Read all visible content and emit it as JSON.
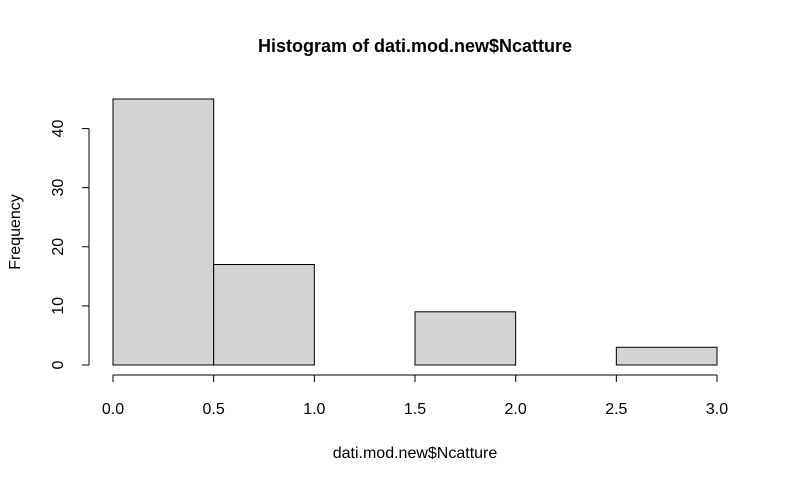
{
  "chart_data": {
    "type": "bar",
    "subtype": "histogram",
    "title": "Histogram of dati.mod.new$Ncatture",
    "xlabel": "dati.mod.new$Ncatture",
    "ylabel": "Frequency",
    "bins": [
      {
        "from": 0.0,
        "to": 0.5,
        "value": 45
      },
      {
        "from": 0.5,
        "to": 1.0,
        "value": 17
      },
      {
        "from": 1.0,
        "to": 1.5,
        "value": 0
      },
      {
        "from": 1.5,
        "to": 2.0,
        "value": 9
      },
      {
        "from": 2.0,
        "to": 2.5,
        "value": 0
      },
      {
        "from": 2.5,
        "to": 3.0,
        "value": 3
      }
    ],
    "xlim": [
      0,
      3
    ],
    "ylim": [
      0,
      45
    ],
    "x_ticks": [
      {
        "value": 0.0,
        "label": "0.0"
      },
      {
        "value": 0.5,
        "label": "0.5"
      },
      {
        "value": 1.0,
        "label": "1.0"
      },
      {
        "value": 1.5,
        "label": "1.5"
      },
      {
        "value": 2.0,
        "label": "2.0"
      },
      {
        "value": 2.5,
        "label": "2.5"
      },
      {
        "value": 3.0,
        "label": "3.0"
      }
    ],
    "y_ticks": [
      {
        "value": 0,
        "label": "0"
      },
      {
        "value": 10,
        "label": "10"
      },
      {
        "value": 20,
        "label": "20"
      },
      {
        "value": 30,
        "label": "30"
      },
      {
        "value": 40,
        "label": "40"
      }
    ],
    "grid": false,
    "legend": "none",
    "colors": {
      "bar_fill": "#d3d3d3",
      "bar_stroke": "#000000",
      "axis": "#000000"
    }
  }
}
